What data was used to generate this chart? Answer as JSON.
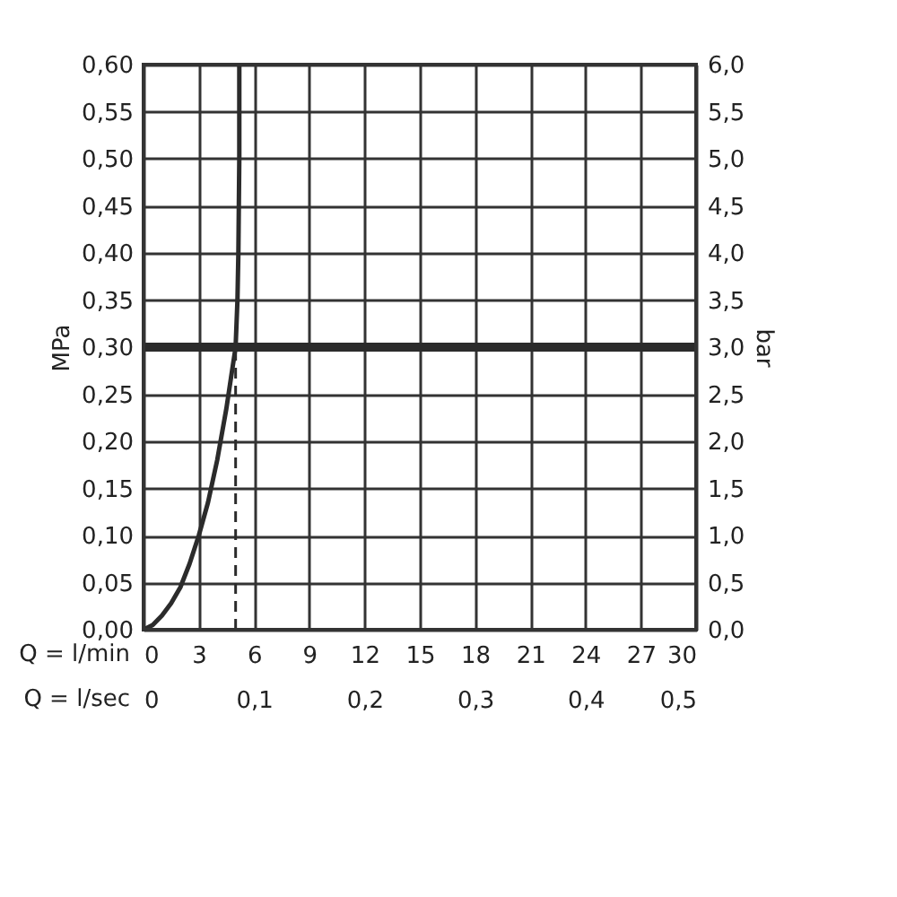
{
  "chart_data": {
    "type": "line",
    "xlabel": "Q = l/min",
    "ylabel": "MPa",
    "y2label": "bar",
    "x2label": "Q = l/sec",
    "xlim": [
      0,
      30
    ],
    "xticks": [
      0,
      3,
      6,
      9,
      12,
      15,
      18,
      21,
      24,
      27,
      30
    ],
    "x2lim": [
      0,
      0.5
    ],
    "x2ticks": [
      {
        "value": 0,
        "label": "0"
      },
      {
        "value": 0.1,
        "label": "0,1"
      },
      {
        "value": 0.2,
        "label": "0,2"
      },
      {
        "value": 0.3,
        "label": "0,3"
      },
      {
        "value": 0.4,
        "label": "0,4"
      },
      {
        "value": 0.5,
        "label": "0,5"
      }
    ],
    "ylim": [
      0,
      0.6
    ],
    "yticks": [
      {
        "value": 0,
        "label": "0,00"
      },
      {
        "value": 0.05,
        "label": "0,05"
      },
      {
        "value": 0.1,
        "label": "0,10"
      },
      {
        "value": 0.15,
        "label": "0,15"
      },
      {
        "value": 0.2,
        "label": "0,20"
      },
      {
        "value": 0.25,
        "label": "0,25"
      },
      {
        "value": 0.3,
        "label": "0,30"
      },
      {
        "value": 0.35,
        "label": "0,35"
      },
      {
        "value": 0.4,
        "label": "0,40"
      },
      {
        "value": 0.45,
        "label": "0,45"
      },
      {
        "value": 0.5,
        "label": "0,50"
      },
      {
        "value": 0.55,
        "label": "0,55"
      },
      {
        "value": 0.6,
        "label": "0,60"
      }
    ],
    "y2lim": [
      0,
      6
    ],
    "y2ticks": [
      {
        "value": 0,
        "label": "0,0"
      },
      {
        "value": 0.5,
        "label": "0,5"
      },
      {
        "value": 1,
        "label": "1,0"
      },
      {
        "value": 1.5,
        "label": "1,5"
      },
      {
        "value": 2,
        "label": "2,0"
      },
      {
        "value": 2.5,
        "label": "2,5"
      },
      {
        "value": 3,
        "label": "3,0"
      },
      {
        "value": 3.5,
        "label": "3,5"
      },
      {
        "value": 4,
        "label": "4,0"
      },
      {
        "value": 4.5,
        "label": "4,5"
      },
      {
        "value": 5,
        "label": "5,0"
      },
      {
        "value": 5.5,
        "label": "5,5"
      },
      {
        "value": 6,
        "label": "6,0"
      }
    ],
    "series": [
      {
        "color": "#2b2b2b",
        "line_style": "solid",
        "x": [
          0,
          0.5,
          1,
          1.5,
          2,
          2.5,
          3,
          3.5,
          4,
          4.5,
          5,
          5.1,
          5.15,
          5.2,
          5.2
        ],
        "values": [
          0,
          0.005,
          0.015,
          0.028,
          0.045,
          0.07,
          0.1,
          0.135,
          0.18,
          0.235,
          0.3,
          0.35,
          0.4,
          0.5,
          0.6
        ]
      },
      {
        "color": "#2b2b2b",
        "line_style": "dashed",
        "x": [
          5,
          5
        ],
        "values": [
          0,
          0.3
        ]
      }
    ],
    "ref_lines": [
      {
        "axis": "y",
        "value": 0.3,
        "color": "#2b2b2b"
      }
    ],
    "grid": true,
    "marker": "none"
  }
}
